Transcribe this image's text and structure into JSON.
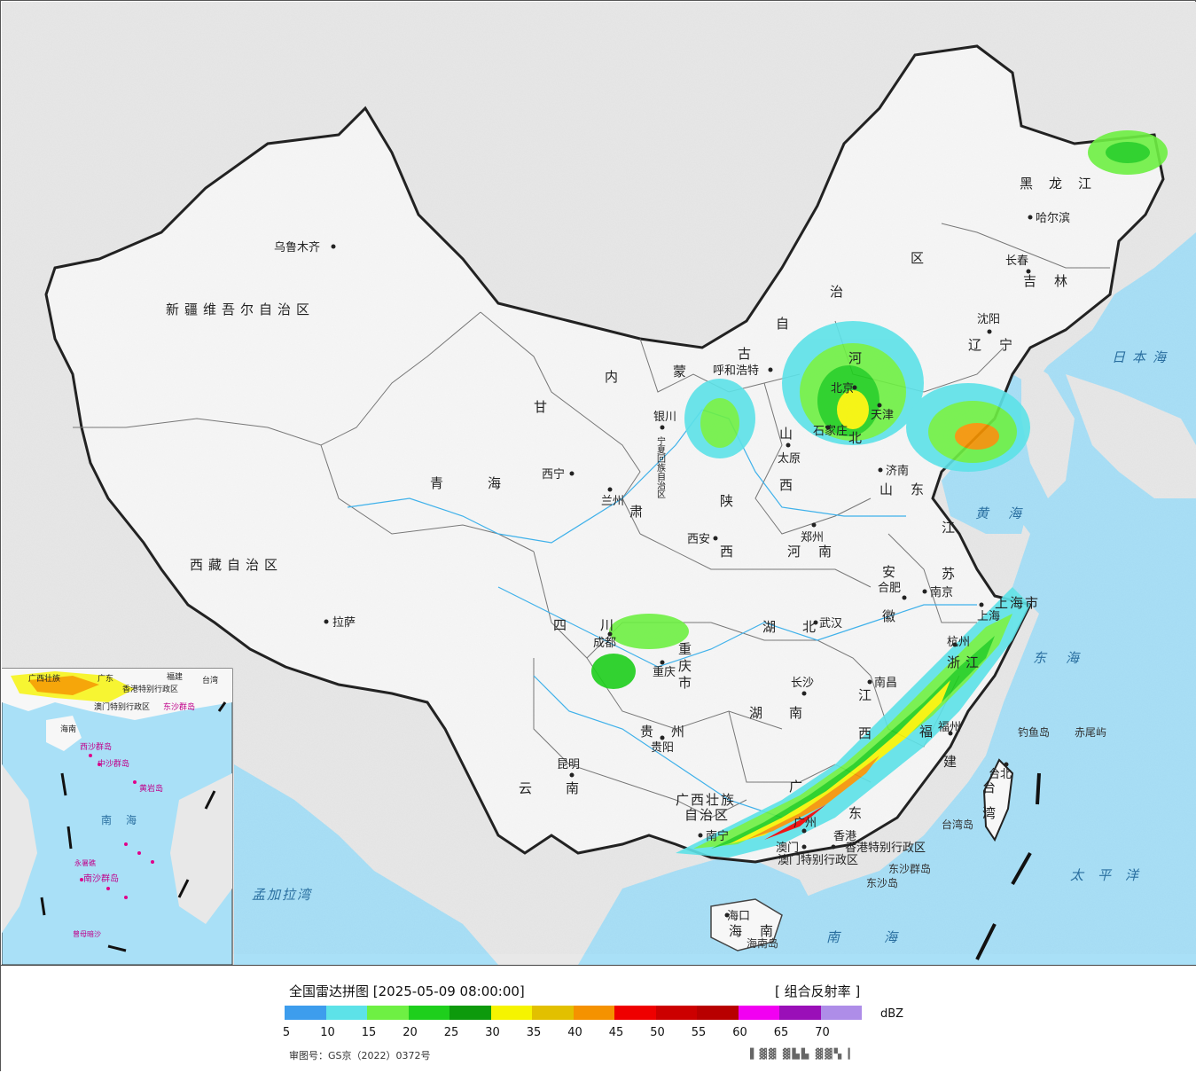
{
  "map": {
    "provinces": [
      {
        "id": "xinjiang",
        "name": "新疆维吾尔自治区"
      },
      {
        "id": "xizang",
        "name": "西藏自治区"
      },
      {
        "id": "qinghai",
        "name": "青海"
      },
      {
        "id": "gansu1",
        "name": "甘"
      },
      {
        "id": "gansu2",
        "name": "肃"
      },
      {
        "id": "neimeng1",
        "name": "内"
      },
      {
        "id": "neimeng2",
        "name": "蒙"
      },
      {
        "id": "neimeng3",
        "name": "古"
      },
      {
        "id": "neimeng4",
        "name": "自"
      },
      {
        "id": "neimeng5",
        "name": "治"
      },
      {
        "id": "neimeng6",
        "name": "区"
      },
      {
        "id": "heilongjiang",
        "name": "黑龙江"
      },
      {
        "id": "jilin",
        "name": "吉林"
      },
      {
        "id": "liaoning",
        "name": "辽宁"
      },
      {
        "id": "hebei1",
        "name": "河"
      },
      {
        "id": "hebei2",
        "name": "北"
      },
      {
        "id": "shanxi1",
        "name": "山"
      },
      {
        "id": "shanxi2",
        "name": "西"
      },
      {
        "id": "shaanxi1",
        "name": "陕"
      },
      {
        "id": "shaanxi2",
        "name": "西"
      },
      {
        "id": "shandong",
        "name": "山东"
      },
      {
        "id": "henan",
        "name": "河南"
      },
      {
        "id": "jiangsu1",
        "name": "江"
      },
      {
        "id": "jiangsu2",
        "name": "苏"
      },
      {
        "id": "anhui1",
        "name": "安"
      },
      {
        "id": "anhui2",
        "name": "徽"
      },
      {
        "id": "sichuan",
        "name": "四川"
      },
      {
        "id": "chongqing",
        "name": "重庆市"
      },
      {
        "id": "hubei",
        "name": "湖北"
      },
      {
        "id": "hunan",
        "name": "湖南"
      },
      {
        "id": "jiangxi1",
        "name": "江"
      },
      {
        "id": "jiangxi2",
        "name": "西"
      },
      {
        "id": "zhejiang",
        "name": "浙江"
      },
      {
        "id": "fujian1",
        "name": "福"
      },
      {
        "id": "fujian2",
        "name": "建"
      },
      {
        "id": "guizhou",
        "name": "贵州"
      },
      {
        "id": "yunnan",
        "name": "云南"
      },
      {
        "id": "guangxi1",
        "name": "广西壮族"
      },
      {
        "id": "guangxi2",
        "name": "自治区"
      },
      {
        "id": "guangdong1",
        "name": "广"
      },
      {
        "id": "guangdong2",
        "name": "东"
      },
      {
        "id": "hainan",
        "name": "海南"
      },
      {
        "id": "taiwan",
        "name": "台湾"
      },
      {
        "id": "shanghai",
        "name": "上海市"
      },
      {
        "id": "ningxia",
        "name": "宁夏回族自治区"
      }
    ],
    "cities": [
      {
        "id": "urumqi",
        "name": "乌鲁木齐"
      },
      {
        "id": "lhasa",
        "name": "拉萨"
      },
      {
        "id": "xining",
        "name": "西宁"
      },
      {
        "id": "lanzhou",
        "name": "兰州"
      },
      {
        "id": "yinchuan",
        "name": "银川"
      },
      {
        "id": "hohhot",
        "name": "呼和浩特"
      },
      {
        "id": "taiyuan",
        "name": "太原"
      },
      {
        "id": "shijiazhuang",
        "name": "石家庄"
      },
      {
        "id": "beijing",
        "name": "北京"
      },
      {
        "id": "tianjin",
        "name": "天津"
      },
      {
        "id": "xian",
        "name": "西安"
      },
      {
        "id": "zhengzhou",
        "name": "郑州"
      },
      {
        "id": "jinan",
        "name": "济南"
      },
      {
        "id": "harbin",
        "name": "哈尔滨"
      },
      {
        "id": "changchun",
        "name": "长春"
      },
      {
        "id": "shenyang",
        "name": "沈阳"
      },
      {
        "id": "hefei",
        "name": "合肥"
      },
      {
        "id": "nanjing",
        "name": "南京"
      },
      {
        "id": "shanghai",
        "name": "上海"
      },
      {
        "id": "hangzhou",
        "name": "杭州"
      },
      {
        "id": "wuhan",
        "name": "武汉"
      },
      {
        "id": "changsha",
        "name": "长沙"
      },
      {
        "id": "nanchang",
        "name": "南昌"
      },
      {
        "id": "fuzhou",
        "name": "福州"
      },
      {
        "id": "chengdu",
        "name": "成都"
      },
      {
        "id": "chongqing",
        "name": "重庆"
      },
      {
        "id": "guiyang",
        "name": "贵阳"
      },
      {
        "id": "kunming",
        "name": "昆明"
      },
      {
        "id": "nanning",
        "name": "南宁"
      },
      {
        "id": "guangzhou",
        "name": "广州"
      },
      {
        "id": "macau",
        "name": "澳门"
      },
      {
        "id": "hongkong",
        "name": "香港"
      },
      {
        "id": "haikou",
        "name": "海口"
      },
      {
        "id": "taipei",
        "name": "台北"
      }
    ],
    "special_regions": [
      {
        "id": "hk_sar",
        "name": "香港特别行政区"
      },
      {
        "id": "macau_sar",
        "name": "澳门特别行政区"
      }
    ],
    "seas": [
      {
        "id": "sea_japan",
        "name": "日本海"
      },
      {
        "id": "yellow_sea",
        "name": "黄海"
      },
      {
        "id": "east_sea",
        "name": "东海"
      },
      {
        "id": "pacific",
        "name": "太平洋"
      },
      {
        "id": "south_sea",
        "name": "南海"
      },
      {
        "id": "bengal",
        "name": "孟加拉湾"
      }
    ],
    "islands": [
      {
        "id": "diaoyu",
        "name": "钓鱼岛"
      },
      {
        "id": "chiwei",
        "name": "赤尾屿"
      },
      {
        "id": "taiwan_island",
        "name": "台湾岛"
      },
      {
        "id": "dongsha_islands",
        "name": "东沙群岛"
      },
      {
        "id": "dongsha",
        "name": "东沙岛"
      },
      {
        "id": "hainan_island",
        "name": "海南岛"
      }
    ],
    "inset": {
      "labels": [
        {
          "id": "i_guangxi",
          "name": "广西壮族"
        },
        {
          "id": "i_guangdong",
          "name": "广东"
        },
        {
          "id": "i_fujian",
          "name": "福建"
        },
        {
          "id": "i_taiwan",
          "name": "台湾"
        },
        {
          "id": "i_hk",
          "name": "香港特别行政区"
        },
        {
          "id": "i_macau",
          "name": "澳门特别行政区"
        },
        {
          "id": "i_dongsha",
          "name": "东沙群岛"
        },
        {
          "id": "i_hainan",
          "name": "海南"
        },
        {
          "id": "i_xisha",
          "name": "西沙群岛"
        },
        {
          "id": "i_zhongsha",
          "name": "中沙群岛"
        },
        {
          "id": "i_huangyan",
          "name": "黄岩岛"
        },
        {
          "id": "i_southsea",
          "name": "南海"
        },
        {
          "id": "i_nansha",
          "name": "南沙群岛"
        },
        {
          "id": "i_yongshu",
          "name": "永暑礁"
        },
        {
          "id": "i_zengmu",
          "name": "曾母暗沙"
        }
      ]
    }
  },
  "legend": {
    "title": "全国雷达拼图 [2025-05-09 08:00:00]",
    "product": "[ 组合反射率 ]",
    "unit": "dBZ",
    "colors": [
      "#3d9ded",
      "#5de2e8",
      "#6ef043",
      "#1ecf1c",
      "#0d9a0c",
      "#f6f400",
      "#e2c000",
      "#f59200",
      "#ef0000",
      "#cc0000",
      "#b80000",
      "#f200f2",
      "#9a0fb8",
      "#ae8de8"
    ],
    "ticks": [
      "5",
      "10",
      "15",
      "20",
      "25",
      "30",
      "35",
      "40",
      "45",
      "50",
      "55",
      "60",
      "65",
      "70"
    ],
    "approval": "审图号：GS京（2022）0372号"
  }
}
